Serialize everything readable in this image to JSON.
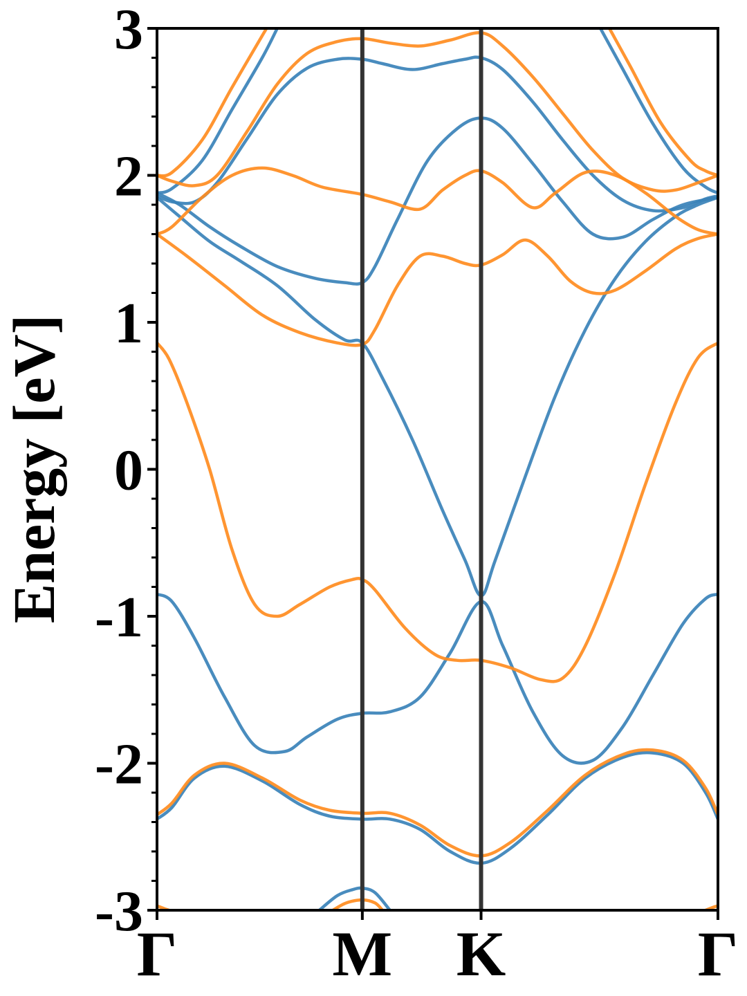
{
  "chart_data": {
    "type": "line",
    "title": "",
    "xlabel": "",
    "ylabel": "Energy [eV]",
    "ylim": [
      -3,
      3
    ],
    "yticks": [
      {
        "value": 3,
        "label": "3"
      },
      {
        "value": 2,
        "label": "2"
      },
      {
        "value": 1,
        "label": "1"
      },
      {
        "value": 0,
        "label": "0"
      },
      {
        "value": -1,
        "label": "-1"
      },
      {
        "value": -2,
        "label": "-2"
      },
      {
        "value": -3,
        "label": "-3"
      }
    ],
    "minor_ytick_step": 0.2,
    "xlim": [
      0,
      3.732
    ],
    "kpoints": [
      {
        "label": "Γ",
        "x": 0
      },
      {
        "label": "M",
        "x": 1.366
      },
      {
        "label": "K",
        "x": 2.156
      },
      {
        "label": "Γ",
        "x": 3.732
      }
    ],
    "grid": false,
    "legend": "none",
    "colors": {
      "blue": "#3a82b8",
      "orange": "#ff8c1f",
      "kline": "#333333",
      "frame": "#000000"
    },
    "series": [
      {
        "color": "blue",
        "points": [
          [
            0,
            1.85
          ],
          [
            0.15,
            1.72
          ],
          [
            0.35,
            1.55
          ],
          [
            0.55,
            1.42
          ],
          [
            0.8,
            1.25
          ],
          [
            1.05,
            1.02
          ],
          [
            1.25,
            0.88
          ],
          [
            1.366,
            0.86
          ],
          [
            1.5,
            0.62
          ],
          [
            1.7,
            0.2
          ],
          [
            1.9,
            -0.28
          ],
          [
            2.05,
            -0.62
          ],
          [
            2.156,
            -0.86
          ],
          [
            2.25,
            -0.62
          ],
          [
            2.45,
            -0.05
          ],
          [
            2.65,
            0.5
          ],
          [
            2.85,
            0.95
          ],
          [
            3.05,
            1.3
          ],
          [
            3.25,
            1.55
          ],
          [
            3.45,
            1.72
          ],
          [
            3.6,
            1.8
          ],
          [
            3.732,
            1.85
          ]
        ]
      },
      {
        "color": "blue",
        "points": [
          [
            0,
            1.88
          ],
          [
            0.15,
            1.8
          ],
          [
            0.35,
            1.65
          ],
          [
            0.55,
            1.52
          ],
          [
            0.8,
            1.38
          ],
          [
            1.05,
            1.3
          ],
          [
            1.25,
            1.27
          ],
          [
            1.366,
            1.27
          ],
          [
            1.45,
            1.38
          ],
          [
            1.6,
            1.7
          ],
          [
            1.8,
            2.1
          ],
          [
            2.0,
            2.32
          ],
          [
            2.156,
            2.39
          ],
          [
            2.3,
            2.32
          ],
          [
            2.5,
            2.08
          ],
          [
            2.7,
            1.82
          ],
          [
            2.9,
            1.6
          ],
          [
            3.1,
            1.58
          ],
          [
            3.3,
            1.7
          ],
          [
            3.5,
            1.8
          ],
          [
            3.732,
            1.85
          ]
        ]
      },
      {
        "color": "blue",
        "points": [
          [
            0,
            1.86
          ],
          [
            0.1,
            1.82
          ],
          [
            0.25,
            1.82
          ],
          [
            0.4,
            1.95
          ],
          [
            0.6,
            2.25
          ],
          [
            0.8,
            2.55
          ],
          [
            1.0,
            2.73
          ],
          [
            1.2,
            2.79
          ],
          [
            1.366,
            2.79
          ],
          [
            1.5,
            2.76
          ],
          [
            1.7,
            2.72
          ],
          [
            1.9,
            2.76
          ],
          [
            2.05,
            2.79
          ],
          [
            2.156,
            2.8
          ],
          [
            2.3,
            2.72
          ],
          [
            2.5,
            2.5
          ],
          [
            2.7,
            2.24
          ],
          [
            2.9,
            2.0
          ],
          [
            3.1,
            1.83
          ],
          [
            3.3,
            1.76
          ],
          [
            3.5,
            1.78
          ],
          [
            3.65,
            1.84
          ],
          [
            3.732,
            1.86
          ]
        ]
      },
      {
        "color": "blue",
        "points": [
          [
            0,
            1.88
          ],
          [
            0.1,
            1.91
          ],
          [
            0.3,
            2.1
          ],
          [
            0.5,
            2.45
          ],
          [
            0.7,
            2.8
          ],
          [
            0.8,
            3.0
          ]
        ]
      },
      {
        "color": "blue",
        "points": [
          [
            2.95,
            3.0
          ],
          [
            3.1,
            2.72
          ],
          [
            3.3,
            2.35
          ],
          [
            3.5,
            2.05
          ],
          [
            3.65,
            1.92
          ],
          [
            3.732,
            1.88
          ]
        ]
      },
      {
        "color": "blue",
        "points": [
          [
            0,
            -0.85
          ],
          [
            0.1,
            -0.9
          ],
          [
            0.25,
            -1.15
          ],
          [
            0.45,
            -1.55
          ],
          [
            0.65,
            -1.88
          ],
          [
            0.85,
            -1.92
          ],
          [
            1.0,
            -1.82
          ],
          [
            1.2,
            -1.7
          ],
          [
            1.366,
            -1.66
          ],
          [
            1.55,
            -1.65
          ],
          [
            1.75,
            -1.55
          ],
          [
            1.95,
            -1.25
          ],
          [
            2.156,
            -0.9
          ],
          [
            2.3,
            -1.2
          ],
          [
            2.5,
            -1.65
          ],
          [
            2.7,
            -1.95
          ],
          [
            2.9,
            -1.98
          ],
          [
            3.1,
            -1.75
          ],
          [
            3.3,
            -1.4
          ],
          [
            3.5,
            -1.05
          ],
          [
            3.65,
            -0.88
          ],
          [
            3.732,
            -0.85
          ]
        ]
      },
      {
        "color": "blue",
        "points": [
          [
            0,
            -2.38
          ],
          [
            0.1,
            -2.3
          ],
          [
            0.25,
            -2.1
          ],
          [
            0.45,
            -2.02
          ],
          [
            0.7,
            -2.12
          ],
          [
            0.95,
            -2.28
          ],
          [
            1.15,
            -2.36
          ],
          [
            1.366,
            -2.38
          ],
          [
            1.55,
            -2.38
          ],
          [
            1.75,
            -2.45
          ],
          [
            1.95,
            -2.6
          ],
          [
            2.156,
            -2.68
          ],
          [
            2.35,
            -2.58
          ],
          [
            2.6,
            -2.35
          ],
          [
            2.85,
            -2.1
          ],
          [
            3.1,
            -1.96
          ],
          [
            3.3,
            -1.93
          ],
          [
            3.5,
            -2.0
          ],
          [
            3.65,
            -2.2
          ],
          [
            3.732,
            -2.38
          ]
        ]
      },
      {
        "color": "blue",
        "points": [
          [
            1.08,
            -3.0
          ],
          [
            1.2,
            -2.9
          ],
          [
            1.3,
            -2.86
          ],
          [
            1.366,
            -2.85
          ],
          [
            1.45,
            -2.88
          ],
          [
            1.55,
            -3.0
          ]
        ]
      },
      {
        "color": "orange",
        "points": [
          [
            0,
            0.86
          ],
          [
            0.08,
            0.75
          ],
          [
            0.2,
            0.45
          ],
          [
            0.35,
            0.0
          ],
          [
            0.5,
            -0.55
          ],
          [
            0.65,
            -0.92
          ],
          [
            0.8,
            -1.0
          ],
          [
            0.95,
            -0.92
          ],
          [
            1.15,
            -0.8
          ],
          [
            1.3,
            -0.75
          ],
          [
            1.366,
            -0.75
          ],
          [
            1.45,
            -0.82
          ],
          [
            1.65,
            -1.08
          ],
          [
            1.85,
            -1.26
          ],
          [
            2.0,
            -1.3
          ],
          [
            2.156,
            -1.3
          ],
          [
            2.35,
            -1.35
          ],
          [
            2.55,
            -1.43
          ],
          [
            2.7,
            -1.42
          ],
          [
            2.85,
            -1.2
          ],
          [
            3.05,
            -0.7
          ],
          [
            3.25,
            -0.1
          ],
          [
            3.45,
            0.45
          ],
          [
            3.6,
            0.76
          ],
          [
            3.732,
            0.86
          ]
        ]
      },
      {
        "color": "orange",
        "points": [
          [
            0,
            1.6
          ],
          [
            0.2,
            1.45
          ],
          [
            0.45,
            1.25
          ],
          [
            0.7,
            1.05
          ],
          [
            0.95,
            0.93
          ],
          [
            1.2,
            0.86
          ],
          [
            1.366,
            0.85
          ],
          [
            1.45,
            0.95
          ],
          [
            1.6,
            1.25
          ],
          [
            1.75,
            1.45
          ],
          [
            1.9,
            1.45
          ],
          [
            2.05,
            1.4
          ],
          [
            2.156,
            1.39
          ],
          [
            2.3,
            1.46
          ],
          [
            2.45,
            1.56
          ],
          [
            2.6,
            1.45
          ],
          [
            2.75,
            1.28
          ],
          [
            2.9,
            1.2
          ],
          [
            3.05,
            1.22
          ],
          [
            3.25,
            1.35
          ],
          [
            3.45,
            1.5
          ],
          [
            3.6,
            1.57
          ],
          [
            3.732,
            1.6
          ]
        ]
      },
      {
        "color": "orange",
        "points": [
          [
            0,
            1.6
          ],
          [
            0.1,
            1.65
          ],
          [
            0.3,
            1.85
          ],
          [
            0.5,
            2.0
          ],
          [
            0.7,
            2.05
          ],
          [
            0.9,
            2.0
          ],
          [
            1.1,
            1.92
          ],
          [
            1.366,
            1.87
          ],
          [
            1.55,
            1.82
          ],
          [
            1.75,
            1.77
          ],
          [
            1.9,
            1.9
          ],
          [
            2.05,
            2.0
          ],
          [
            2.156,
            2.03
          ],
          [
            2.3,
            1.95
          ],
          [
            2.5,
            1.78
          ],
          [
            2.65,
            1.88
          ],
          [
            2.85,
            2.02
          ],
          [
            3.05,
            2.0
          ],
          [
            3.25,
            1.88
          ],
          [
            3.45,
            1.72
          ],
          [
            3.6,
            1.63
          ],
          [
            3.732,
            1.6
          ]
        ]
      },
      {
        "color": "orange",
        "points": [
          [
            0,
            2.0
          ],
          [
            0.1,
            1.96
          ],
          [
            0.25,
            1.93
          ],
          [
            0.4,
            2.0
          ],
          [
            0.6,
            2.3
          ],
          [
            0.8,
            2.62
          ],
          [
            1.0,
            2.83
          ],
          [
            1.2,
            2.91
          ],
          [
            1.366,
            2.93
          ],
          [
            1.55,
            2.9
          ],
          [
            1.75,
            2.88
          ],
          [
            1.95,
            2.92
          ],
          [
            2.156,
            2.97
          ],
          [
            2.3,
            2.88
          ],
          [
            2.5,
            2.67
          ],
          [
            2.7,
            2.42
          ],
          [
            2.9,
            2.17
          ],
          [
            3.1,
            1.98
          ],
          [
            3.3,
            1.9
          ],
          [
            3.45,
            1.9
          ],
          [
            3.6,
            1.95
          ],
          [
            3.732,
            2.0
          ]
        ]
      },
      {
        "color": "orange",
        "points": [
          [
            0,
            2.0
          ],
          [
            0.1,
            2.02
          ],
          [
            0.3,
            2.24
          ],
          [
            0.5,
            2.6
          ],
          [
            0.7,
            2.95
          ],
          [
            0.73,
            3.0
          ]
        ]
      },
      {
        "color": "orange",
        "points": [
          [
            3.01,
            3.0
          ],
          [
            3.15,
            2.74
          ],
          [
            3.35,
            2.36
          ],
          [
            3.55,
            2.1
          ],
          [
            3.65,
            2.03
          ],
          [
            3.732,
            2.0
          ]
        ]
      },
      {
        "color": "orange",
        "points": [
          [
            0,
            -2.35
          ],
          [
            0.1,
            -2.27
          ],
          [
            0.25,
            -2.08
          ],
          [
            0.45,
            -2.0
          ],
          [
            0.7,
            -2.1
          ],
          [
            0.95,
            -2.25
          ],
          [
            1.15,
            -2.32
          ],
          [
            1.366,
            -2.34
          ],
          [
            1.55,
            -2.34
          ],
          [
            1.75,
            -2.42
          ],
          [
            1.95,
            -2.56
          ],
          [
            2.156,
            -2.63
          ],
          [
            2.35,
            -2.54
          ],
          [
            2.6,
            -2.32
          ],
          [
            2.85,
            -2.08
          ],
          [
            3.1,
            -1.94
          ],
          [
            3.3,
            -1.91
          ],
          [
            3.5,
            -1.98
          ],
          [
            3.65,
            -2.17
          ],
          [
            3.732,
            -2.35
          ]
        ]
      },
      {
        "color": "orange",
        "points": [
          [
            1.17,
            -3.0
          ],
          [
            1.26,
            -2.95
          ],
          [
            1.366,
            -2.93
          ],
          [
            1.45,
            -2.95
          ],
          [
            1.5,
            -3.0
          ]
        ]
      },
      {
        "color": "orange",
        "points": [
          [
            0,
            -2.97
          ],
          [
            0.05,
            -2.99
          ],
          [
            0.08,
            -3.0
          ]
        ]
      },
      {
        "color": "orange",
        "points": [
          [
            3.65,
            -3.0
          ],
          [
            3.7,
            -2.98
          ],
          [
            3.732,
            -2.97
          ]
        ]
      }
    ]
  }
}
